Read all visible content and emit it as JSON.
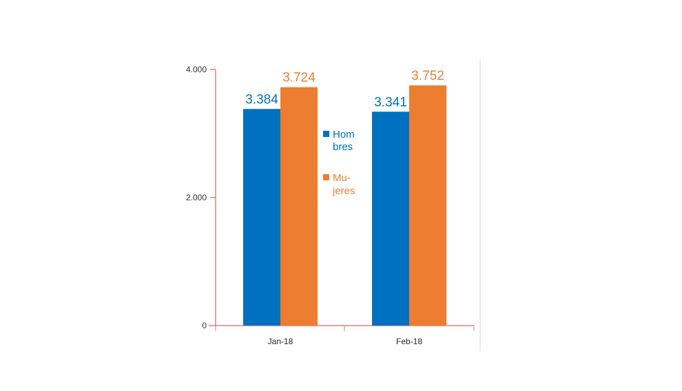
{
  "chart_data": {
    "type": "bar",
    "categories": [
      "Jan-18",
      "Feb-18"
    ],
    "series": [
      {
        "name": "Hombres",
        "values": [
          3384,
          3341
        ],
        "labels": [
          "3.384",
          "3.341"
        ],
        "color": "#0070c0"
      },
      {
        "name": "Mujeres",
        "values": [
          3724,
          3752
        ],
        "labels": [
          "3.724",
          "3.752"
        ],
        "color": "#ed7d31"
      }
    ],
    "legend_lines": [
      [
        "Hom",
        "bres"
      ],
      [
        "Mu-",
        "jeres"
      ]
    ],
    "yticks": [
      0,
      2000,
      4000
    ],
    "ytick_labels": [
      "0",
      "2.000",
      "4.000"
    ],
    "ylim": [
      0,
      4000
    ],
    "axis_color": "#e03c3c",
    "frame_color": "#d9d9d9",
    "grid": false,
    "legend_position": "center, between categories"
  }
}
